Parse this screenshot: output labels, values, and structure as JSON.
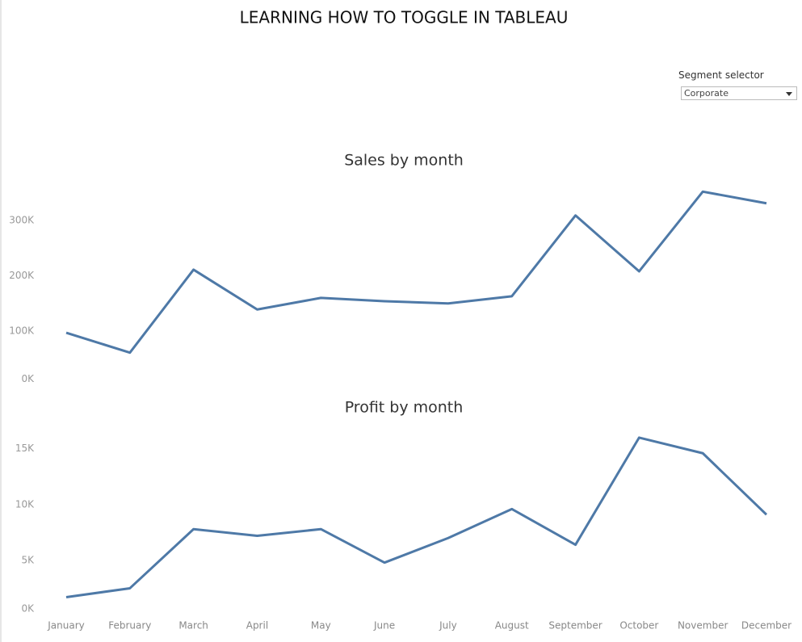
{
  "dashboard": {
    "title": "LEARNING HOW TO TOGGLE IN TABLEAU",
    "selector_label": "Segment selector",
    "selector_value": "Corporate"
  },
  "chart_data": [
    {
      "type": "line",
      "title": "Sales by month",
      "color": "#4e79a7",
      "values": [
        97000,
        61000,
        211000,
        139000,
        160000,
        154000,
        150000,
        163000,
        309000,
        208000,
        352000,
        331000
      ],
      "ylim": [
        0,
        370000
      ],
      "yticks": [
        {
          "value": 0,
          "label": "0K"
        },
        {
          "value": 100000,
          "label": "100K"
        },
        {
          "value": 200000,
          "label": "200K"
        },
        {
          "value": 300000,
          "label": "300K"
        }
      ]
    },
    {
      "type": "line",
      "title": "Profit by month",
      "color": "#4e79a7",
      "categories": [
        "January",
        "February",
        "March",
        "April",
        "May",
        "June",
        "July",
        "August",
        "September",
        "October",
        "November",
        "December"
      ],
      "values": [
        1700,
        2500,
        7800,
        7200,
        7800,
        4800,
        7000,
        9600,
        6400,
        16000,
        14600,
        9100
      ],
      "ylim": [
        0,
        16500
      ],
      "yticks": [
        {
          "value": 0,
          "label": "0K"
        },
        {
          "value": 5000,
          "label": "5K"
        },
        {
          "value": 10000,
          "label": "10K"
        },
        {
          "value": 15000,
          "label": "15K"
        }
      ]
    }
  ]
}
